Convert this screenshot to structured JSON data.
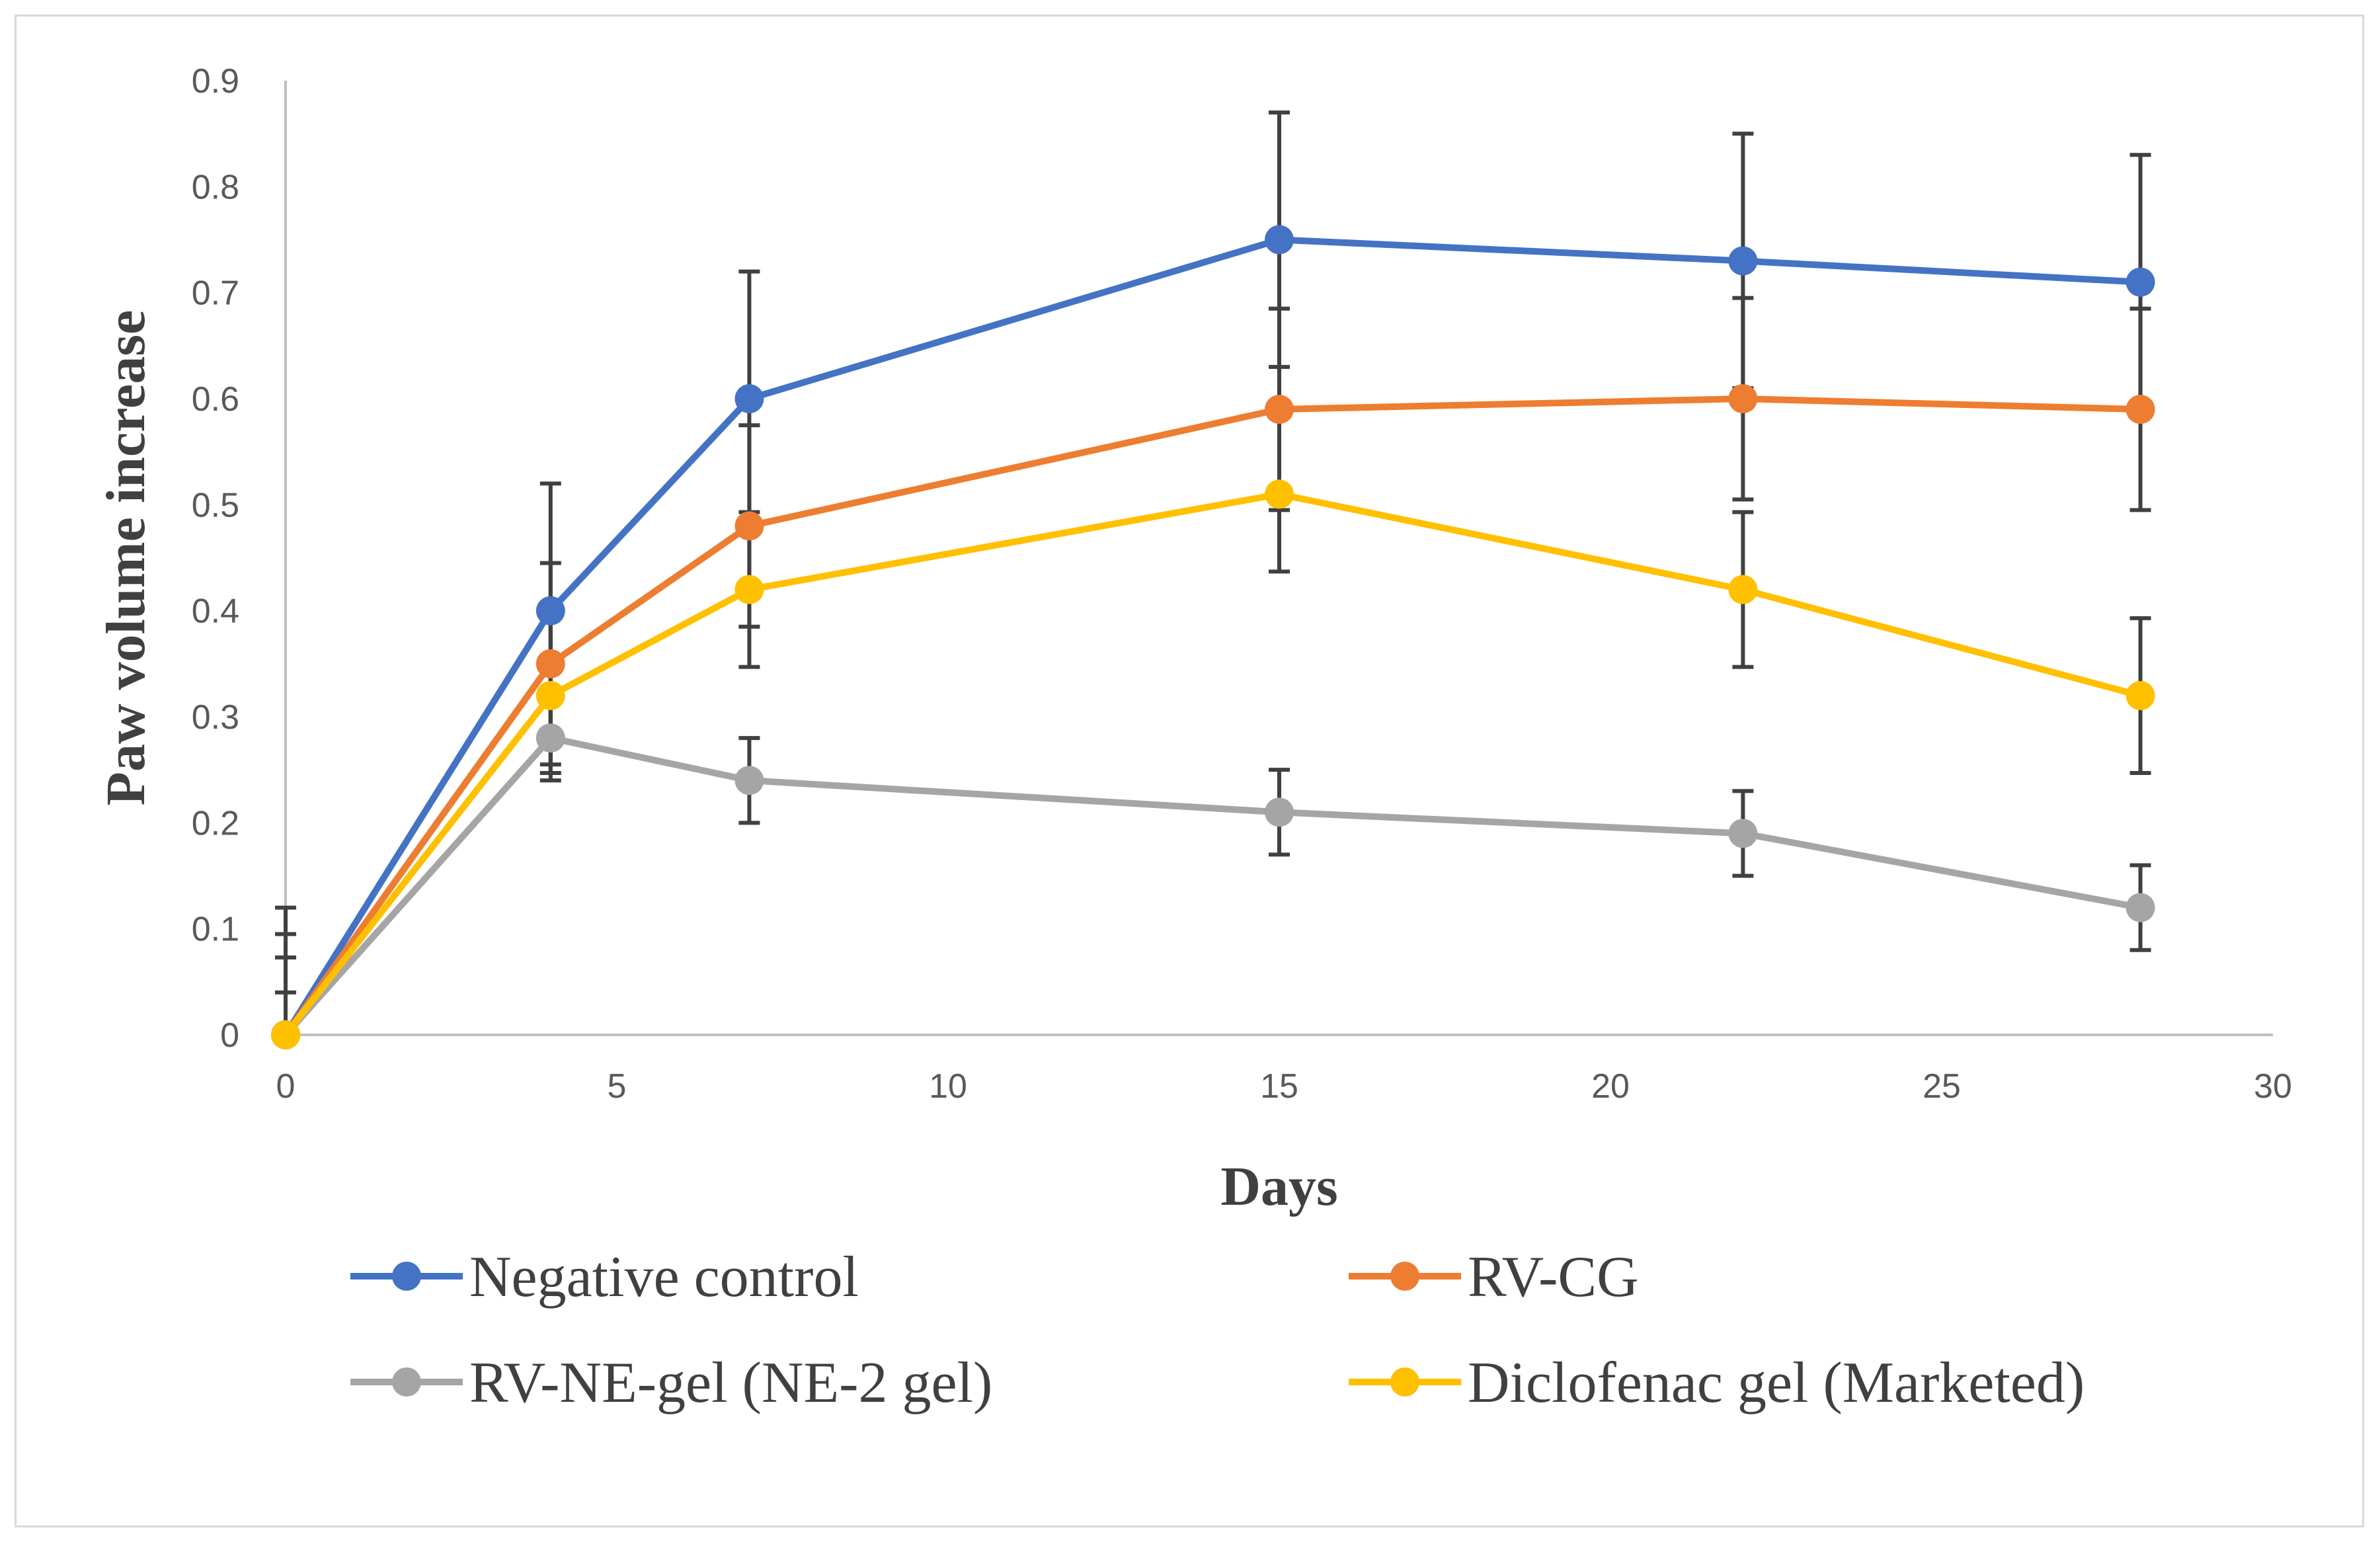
{
  "chart_data": {
    "type": "line",
    "title": "",
    "xlabel": "Days",
    "ylabel": "Paw volume  increase",
    "xlim": [
      0,
      30
    ],
    "ylim": [
      0,
      0.9
    ],
    "x_ticks": [
      "0",
      "5",
      "10",
      "15",
      "20",
      "25",
      "30"
    ],
    "y_ticks": [
      "0",
      "0.1",
      "0.2",
      "0.3",
      "0.4",
      "0.5",
      "0.6",
      "0.7",
      "0.8",
      "0.9"
    ],
    "grid": false,
    "legend_position": "bottom",
    "x": [
      0,
      4,
      7,
      15,
      22,
      28
    ],
    "series": [
      {
        "name": "Negative control",
        "color": "#4472c4",
        "values": [
          0,
          0.4,
          0.6,
          0.75,
          0.73,
          0.71
        ],
        "errors": [
          0.12,
          0.12,
          0.12,
          0.12,
          0.12,
          0.12
        ]
      },
      {
        "name": "RV-CG",
        "color": "#ed7d31",
        "values": [
          0,
          0.35,
          0.48,
          0.59,
          0.6,
          0.59
        ],
        "errors": [
          0.095,
          0.095,
          0.095,
          0.095,
          0.095,
          0.095
        ]
      },
      {
        "name": "RV-NE-gel (NE-2 gel)",
        "color": "#a5a5a5",
        "values": [
          0,
          0.28,
          0.24,
          0.21,
          0.19,
          0.12
        ],
        "errors": [
          0.04,
          0.04,
          0.04,
          0.04,
          0.04,
          0.04
        ]
      },
      {
        "name": "Diclofenac gel (Marketed)",
        "color": "#ffc000",
        "values": [
          0,
          0.32,
          0.42,
          0.51,
          0.42,
          0.32
        ],
        "errors": [
          0.073,
          0.073,
          0.073,
          0.073,
          0.073,
          0.073
        ]
      }
    ]
  }
}
